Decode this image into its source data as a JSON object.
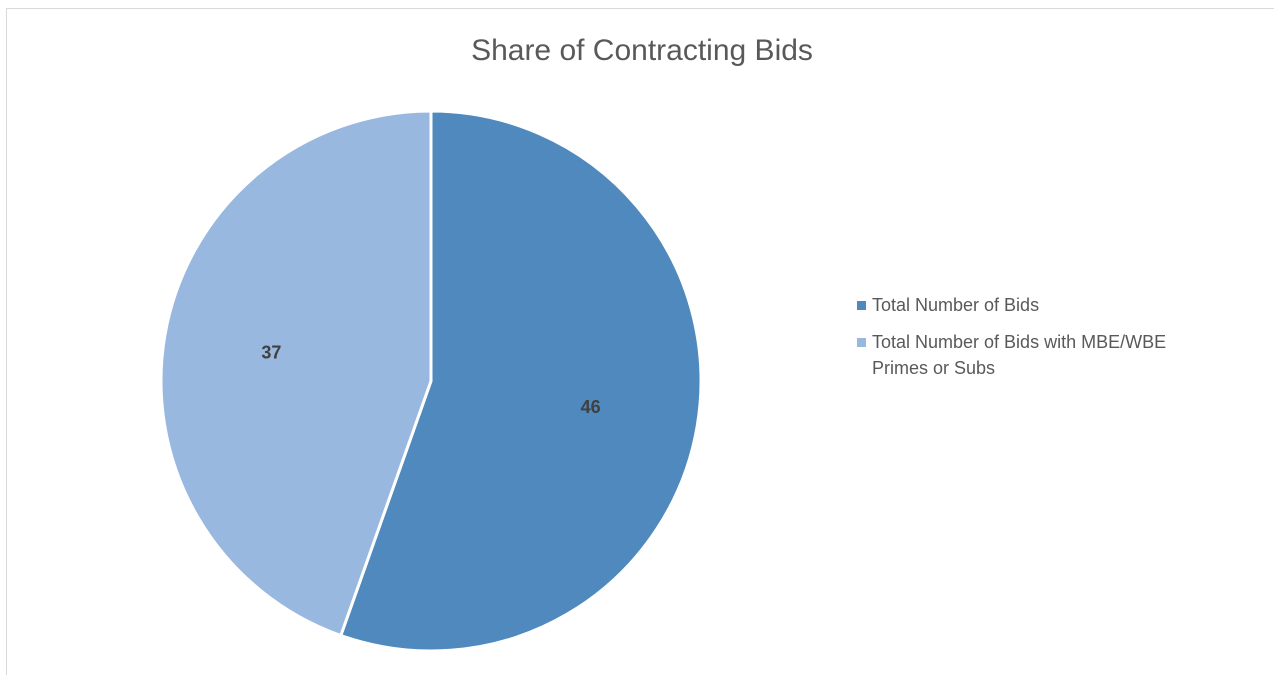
{
  "chart_data": {
    "type": "pie",
    "title": "Share of Contracting Bids",
    "series": [
      {
        "name": "Total Number of Bids",
        "value": 46,
        "label": "46",
        "color": "#4f89bd"
      },
      {
        "name": "Total Number of Bids with MBE/WBE Primes or Subs",
        "value": 37,
        "label": "37",
        "color": "#98b8df"
      }
    ],
    "start_angle_deg": 0,
    "direction": "clockwise",
    "legend_position": "right",
    "label_color": "#404040"
  }
}
